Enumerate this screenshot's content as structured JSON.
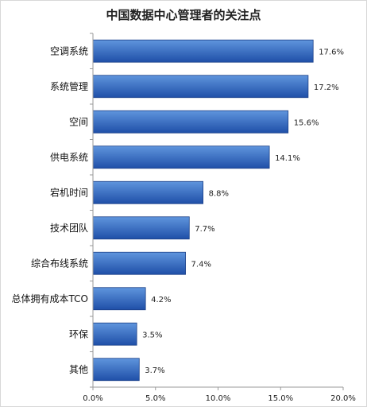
{
  "colors": {
    "bar_top": "#5f95dd",
    "bar_bottom": "#1f4fa8",
    "bar_stroke": "#1a3f87",
    "axis": "#9a9a9a"
  },
  "chart_data": {
    "type": "bar",
    "orientation": "horizontal",
    "title": "中国数据中心管理者的关注点",
    "xlabel": "",
    "ylabel": "",
    "categories": [
      "空调系统",
      "系统管理",
      "空间",
      "供电系统",
      "宕机时间",
      "技术团队",
      "综合布线系统",
      "总体拥有成本TCO",
      "环保",
      "其他"
    ],
    "values": [
      17.6,
      17.2,
      15.6,
      14.1,
      8.8,
      7.7,
      7.4,
      4.2,
      3.5,
      3.7
    ],
    "value_labels": [
      "17.6%",
      "17.2%",
      "15.6%",
      "14.1%",
      "8.8%",
      "7.7%",
      "7.4%",
      "4.2%",
      "3.5%",
      "3.7%"
    ],
    "xlim": [
      0,
      20
    ],
    "xticks": [
      0,
      5,
      10,
      15,
      20
    ],
    "xtick_labels": [
      "0.0%",
      "5.0%",
      "10.0%",
      "15.0%",
      "20.0%"
    ],
    "grid": false,
    "legend": "none"
  }
}
